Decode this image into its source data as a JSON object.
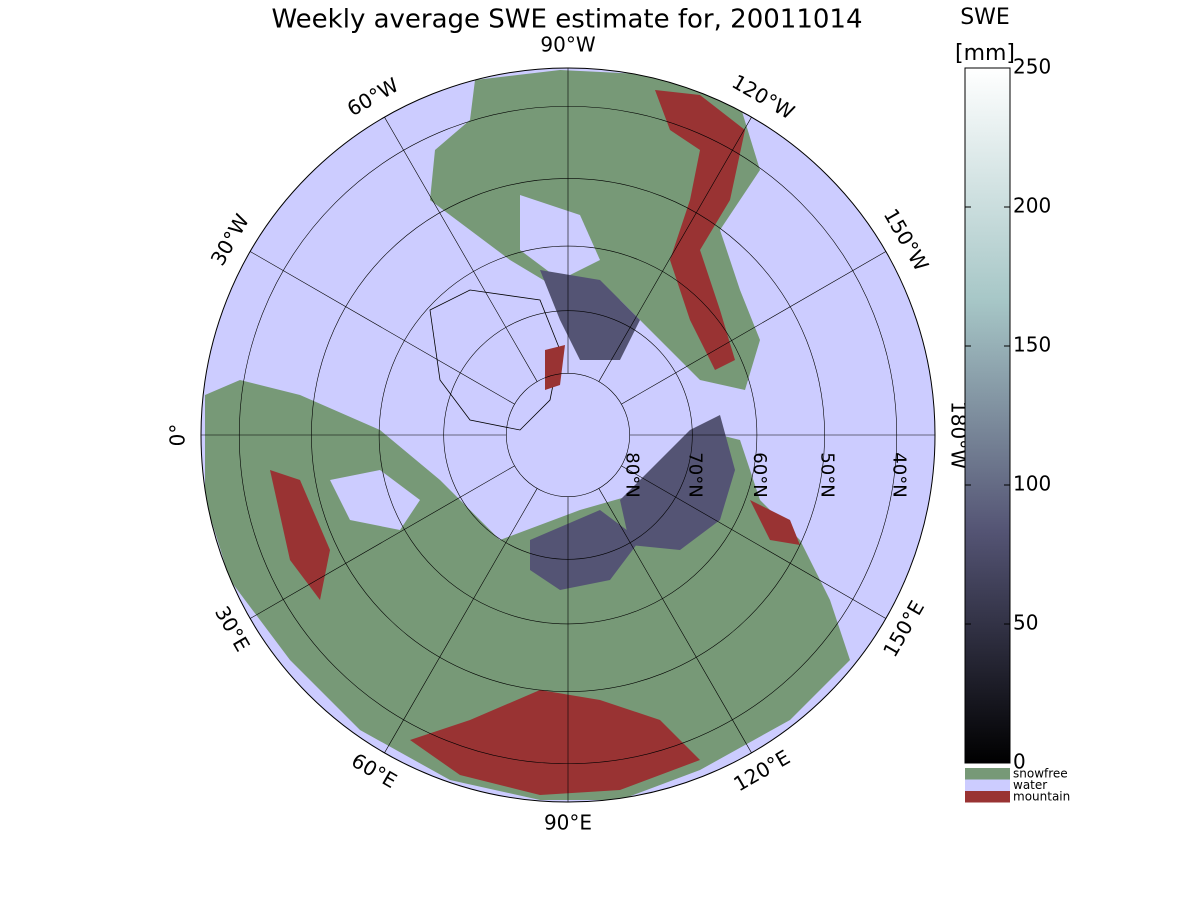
{
  "title": "Weekly average SWE estimate for, 20011014",
  "colorbar": {
    "label": "SWE",
    "units": "[mm]",
    "clim": [
      0,
      250
    ],
    "ticks": [
      0,
      50,
      100,
      150,
      200,
      250
    ],
    "colormap": [
      "#000000",
      "#545474",
      "#a7c7c7",
      "#ffffff"
    ]
  },
  "legend": [
    {
      "label": "snowfree",
      "color": "#779977"
    },
    {
      "label": "water",
      "color": "#ccccff"
    },
    {
      "label": "mountain",
      "color": "#993333"
    }
  ],
  "meridians": [
    {
      "value": 0,
      "label": "0°"
    },
    {
      "value": 30,
      "label": "30°E"
    },
    {
      "value": 60,
      "label": "60°E"
    },
    {
      "value": 90,
      "label": "90°E"
    },
    {
      "value": 120,
      "label": "120°E"
    },
    {
      "value": 150,
      "label": "150°E"
    },
    {
      "value": 180,
      "label": "180°W"
    },
    {
      "value": -150,
      "label": "150°W"
    },
    {
      "value": -120,
      "label": "120°W"
    },
    {
      "value": -90,
      "label": "90°W"
    },
    {
      "value": -60,
      "label": "60°W"
    },
    {
      "value": -30,
      "label": "30°W"
    }
  ],
  "parallels": [
    {
      "value": 80,
      "label": "80°N"
    },
    {
      "value": 70,
      "label": "70°N"
    },
    {
      "value": 60,
      "label": "60°N"
    },
    {
      "value": 50,
      "label": "50°N"
    },
    {
      "value": 40,
      "label": "40°N"
    }
  ]
}
